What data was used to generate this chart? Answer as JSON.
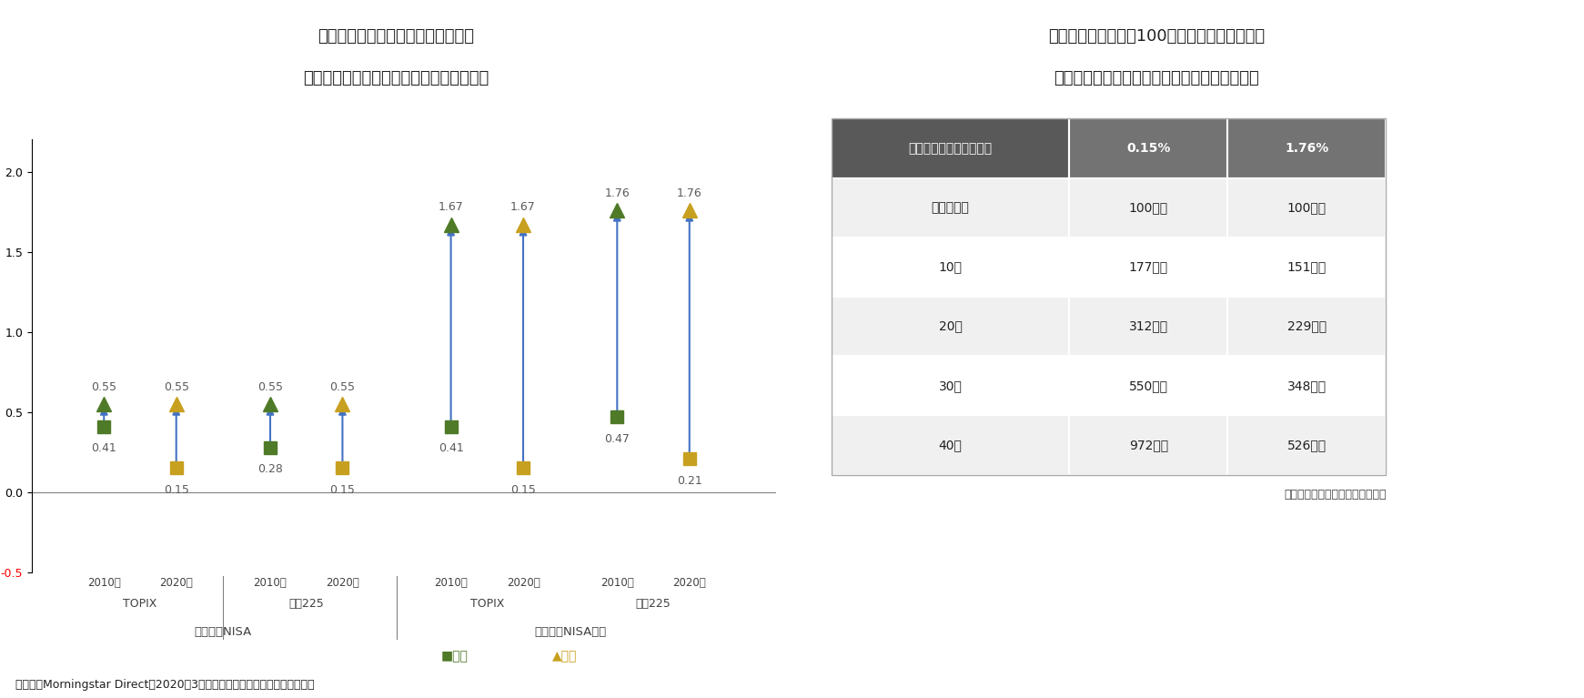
{
  "title1_line1": "図表７　信託報酬等（税込）の比較",
  "title1_line2": "（つみたてＮＩＳＡ対象有無、設定年別）",
  "title2_line1": "図表８　年率６％で100万円を運用した場合の",
  "title2_line2": "　信託報酬等の違いによるパフォーマンスの差",
  "ylabel": "（％）",
  "ylim": [
    -0.5,
    2.2
  ],
  "yticks": [
    -0.5,
    0.0,
    0.5,
    1.0,
    1.5,
    2.0
  ],
  "groups": [
    {
      "label_year": "2010年",
      "label_index": "TOPIX",
      "label_cat": "つみたてNISA",
      "min_val": 0.41,
      "max_val": 0.55,
      "color_min": "#5a8a3c",
      "color_max": "#5a8a3c"
    },
    {
      "label_year": "2020年",
      "label_index": "TOPIX",
      "label_cat": "つみたてNISA",
      "min_val": 0.15,
      "max_val": 0.55,
      "color_min": "#d4a017",
      "color_max": "#d4a017"
    },
    {
      "label_year": "2010年",
      "label_index": "日経225",
      "label_cat": "つみたてNISA",
      "min_val": 0.28,
      "max_val": 0.55,
      "color_min": "#5a8a3c",
      "color_max": "#5a8a3c"
    },
    {
      "label_year": "2020年",
      "label_index": "日経225",
      "label_cat": "つみたてNISA",
      "min_val": 0.15,
      "max_val": 0.55,
      "color_min": "#d4a017",
      "color_max": "#d4a017"
    },
    {
      "label_year": "2010年",
      "label_index": "TOPIX",
      "label_cat": "つみたてNISA以外",
      "min_val": 0.41,
      "max_val": 1.67,
      "color_min": "#5a8a3c",
      "color_max": "#5a8a3c"
    },
    {
      "label_year": "2020年",
      "label_index": "TOPIX",
      "label_cat": "つみたてNISA以外",
      "min_val": 0.15,
      "max_val": 1.67,
      "color_min": "#d4a017",
      "color_max": "#d4a017"
    },
    {
      "label_year": "2010年",
      "label_index": "日経225",
      "label_cat": "つみたてNISA以外",
      "min_val": 0.47,
      "max_val": 1.76,
      "color_min": "#5a8a3c",
      "color_max": "#5a8a3c"
    },
    {
      "label_year": "2020年",
      "label_index": "日経225",
      "label_cat": "つみたてNISA以外",
      "min_val": 0.21,
      "max_val": 1.76,
      "color_min": "#d4a017",
      "color_max": "#d4a017"
    }
  ],
  "arrow_color": "#4472c4",
  "source_left": "（資料）Morningstar Direct（2020年3月時点）よりニッセイ基礎研究所作成",
  "source_right": "（資料）ニッセイ基礎研究所作成",
  "table_header": [
    "投資期間＼　信託報酬等",
    "0.15%",
    "1.76%"
  ],
  "table_rows": [
    [
      "投資開始時",
      "100万円",
      "100万円"
    ],
    [
      "10年",
      "177万円",
      "151万円"
    ],
    [
      "20年",
      "312万円",
      "229万円"
    ],
    [
      "30年",
      "550万円",
      "348万円"
    ],
    [
      "40年",
      "972万円",
      "526万円"
    ]
  ],
  "table_header_bg": "#4d4d4d",
  "table_header_fg": "#ffffff",
  "table_col1_bg": "#595959",
  "table_col2_bg": "#7f7f7f",
  "table_row_bg_even": "#f2f2f2",
  "table_row_bg_odd": "#ffffff",
  "legend_min_color": "#5a8a3c",
  "legend_max_color": "#d4a017",
  "legend_min_label": "最小",
  "legend_max_label": "最大"
}
